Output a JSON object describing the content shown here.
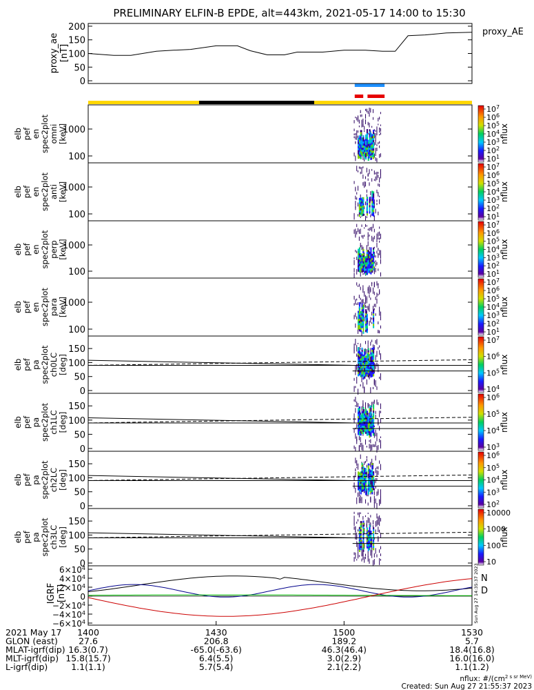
{
  "title": "PRELIMINARY ELFIN-B EPDE, alt=443km, 2021-05-17 14:00 to 15:30",
  "chart_data": [
    {
      "type": "line",
      "panel": "proxy_ae",
      "ylabel": [
        "proxy_ae",
        "[nT]"
      ],
      "legend": "proxy_AE",
      "yticks": [
        "200",
        "150",
        "100",
        "50",
        "0"
      ],
      "ylim": [
        -10,
        210
      ],
      "x_minutes": [
        0,
        6,
        10,
        16,
        18,
        20,
        24,
        30,
        35,
        38,
        42,
        46,
        49,
        55,
        60,
        65,
        69,
        72,
        75,
        79,
        84,
        90
      ],
      "y": [
        100,
        93,
        93,
        108,
        110,
        112,
        115,
        128,
        128,
        110,
        95,
        95,
        105,
        105,
        112,
        112,
        108,
        108,
        165,
        168,
        175,
        178
      ]
    },
    {
      "type": "spectrogram",
      "panel": "elb_pef_en_spec2plot_omni",
      "ylabel": [
        "elb",
        "pef",
        "en",
        "spec2plot",
        "omni",
        "[keV]"
      ],
      "yticks": [
        "1000",
        "100"
      ],
      "cbar_label": "nflux",
      "cbar_ticks": [
        "10^7",
        "10^6",
        "10^5",
        "10^4",
        "10^3",
        "10^2",
        "10^1"
      ]
    },
    {
      "type": "spectrogram",
      "panel": "elb_pef_en_spec2plot_anti",
      "ylabel": [
        "elb",
        "pef",
        "en",
        "spec2plot",
        "anti",
        "[keV]"
      ],
      "yticks": [
        "1000",
        "100"
      ],
      "cbar_label": "nflux",
      "cbar_ticks": [
        "10^7",
        "10^6",
        "10^5",
        "10^4",
        "10^3",
        "10^2",
        "10^1"
      ]
    },
    {
      "type": "spectrogram",
      "panel": "elb_pef_en_spec2plot_perp",
      "ylabel": [
        "elb",
        "pef",
        "en",
        "spec2plot",
        "perp",
        "[keV]"
      ],
      "yticks": [
        "1000",
        "100"
      ],
      "cbar_label": "nflux",
      "cbar_ticks": [
        "10^7",
        "10^6",
        "10^5",
        "10^4",
        "10^3",
        "10^2",
        "10^1"
      ]
    },
    {
      "type": "spectrogram",
      "panel": "elb_pef_en_spec2plot_para",
      "ylabel": [
        "elb",
        "pef",
        "en",
        "spec2plot",
        "para",
        "[keV]"
      ],
      "yticks": [
        "1000",
        "100"
      ],
      "cbar_label": "nflux",
      "cbar_ticks": [
        "10^7",
        "10^6",
        "10^5",
        "10^4",
        "10^3",
        "10^2",
        "10^1"
      ]
    },
    {
      "type": "spectrogram",
      "panel": "elb_pef_pa_spec2plot_ch0LC",
      "ylabel": [
        "elb",
        "pef",
        "pa",
        "spec2plot",
        "ch0LC",
        "[deg]"
      ],
      "yticks": [
        "150",
        "100",
        "50",
        "0"
      ],
      "cbar_label": "nflux",
      "cbar_ticks": [
        "10^7",
        "10^6",
        "10^5",
        "10^4"
      ]
    },
    {
      "type": "spectrogram",
      "panel": "elb_pef_pa_spec2plot_ch1LC",
      "ylabel": [
        "elb",
        "pef",
        "pa",
        "spec2plot",
        "ch1LC",
        "[deg]"
      ],
      "yticks": [
        "150",
        "100",
        "50",
        "0"
      ],
      "cbar_label": "nflux",
      "cbar_ticks": [
        "10^6",
        "10^5",
        "10^4",
        "10^3"
      ]
    },
    {
      "type": "spectrogram",
      "panel": "elb_pef_pa_spec2plot_ch2LC",
      "ylabel": [
        "elb",
        "pef",
        "pa",
        "spec2plot",
        "ch2LC",
        "[deg]"
      ],
      "yticks": [
        "150",
        "100",
        "50",
        "0"
      ],
      "cbar_label": "nflux",
      "cbar_ticks": [
        "10^6",
        "10^5",
        "10^4",
        "10^3",
        "10^2"
      ]
    },
    {
      "type": "spectrogram",
      "panel": "elb_pef_pa_spec2plot_ch3LC",
      "ylabel": [
        "elb",
        "pef",
        "pa",
        "spec2plot",
        "ch3LC",
        "[deg]"
      ],
      "yticks": [
        "150",
        "100",
        "50",
        "0"
      ],
      "cbar_label": "nflux",
      "cbar_ticks": [
        "10000",
        "1000",
        "100",
        "10"
      ]
    },
    {
      "type": "line",
      "panel": "IGRF",
      "ylabel": [
        "IGRF",
        "[nT]"
      ],
      "yticks": [
        "6×10^4",
        "4×10^4",
        "2×10^4",
        "0",
        "−2×10^4",
        "−4×10^4",
        "−6×10^4"
      ],
      "legend": [
        "N",
        "D"
      ],
      "legend_colors": [
        "#00008b",
        "#cc0000"
      ],
      "side_text": "Sun Aug 27 14:35:37 2023"
    }
  ],
  "xaxis": {
    "ticks": [
      "1400",
      "1430",
      "1500",
      "1530"
    ],
    "rows": [
      {
        "label": "2021 May 17",
        "values": [
          "1400",
          "1430",
          "1500",
          "1530"
        ]
      },
      {
        "label": "GLON (east)",
        "values": [
          "27.6",
          "206.8",
          "189.2",
          "5.7"
        ]
      },
      {
        "label": "MLAT-igrf(dip)",
        "values": [
          "16.3(0.7)",
          "-65.0(-63.6)",
          "46.3(46.4)",
          "18.4(16.8)"
        ]
      },
      {
        "label": "MLT-igrf(dip)",
        "values": [
          "15.8(15.7)",
          "6.4(5.5)",
          "3.0(2.9)",
          "16.0(16.0)"
        ]
      },
      {
        "label": "L-igrf(dip)",
        "values": [
          "1.1(1.1)",
          "5.7(5.4)",
          "2.1(2.2)",
          "1.1(1.2)"
        ]
      }
    ]
  },
  "footer": {
    "units": "nflux: #/(cm^2 s sr MeV)",
    "created": "Created: Sun Aug 27 21:55:37 2023"
  }
}
